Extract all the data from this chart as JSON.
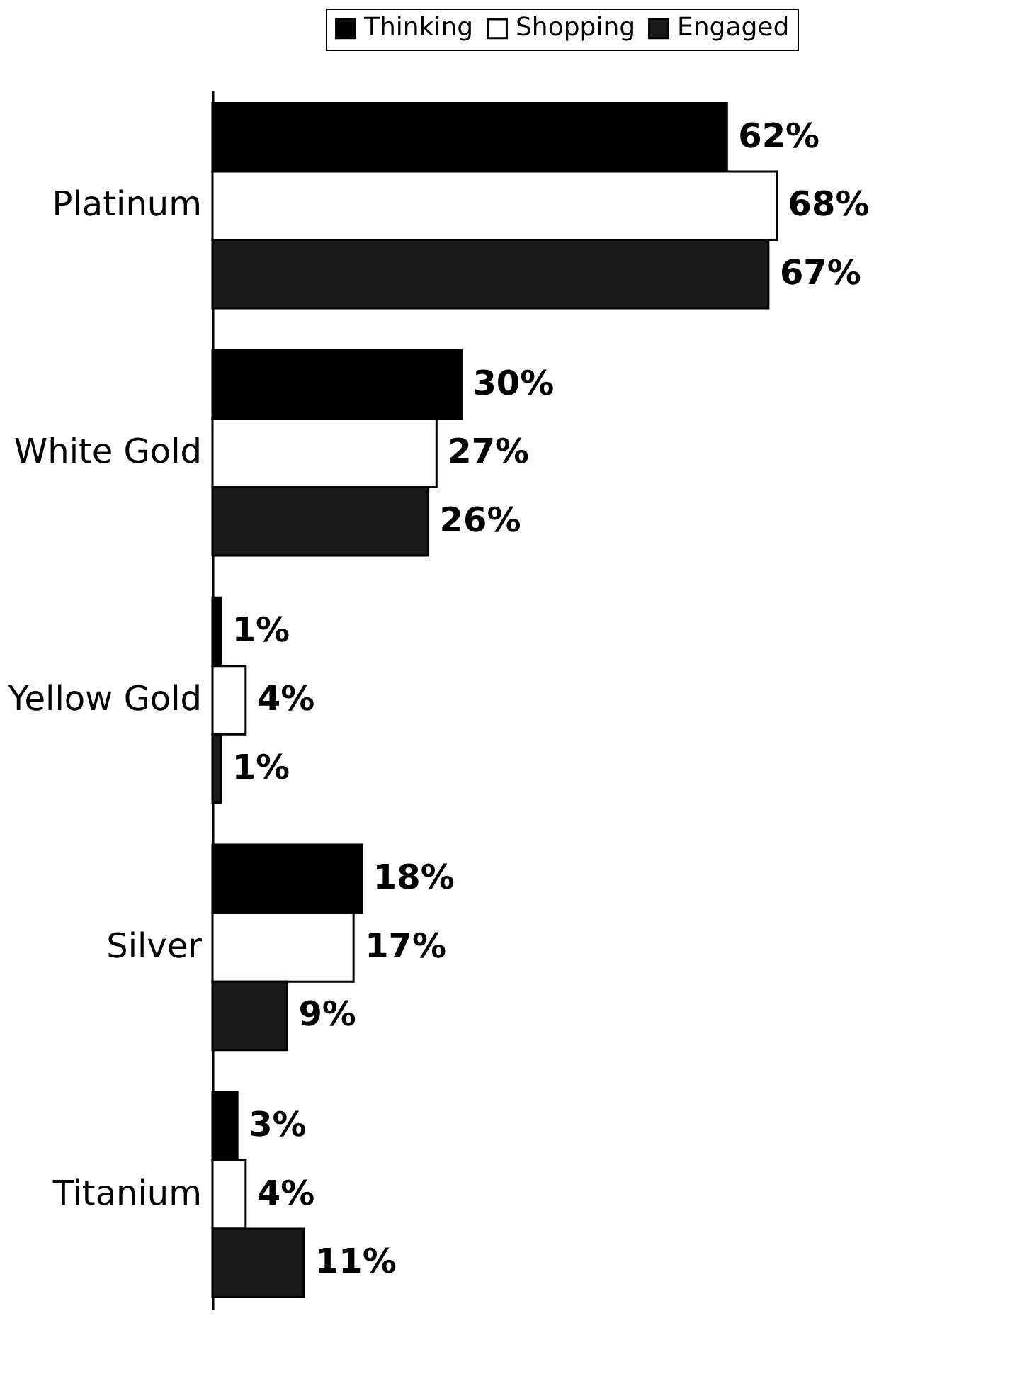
{
  "chart_data": {
    "type": "bar",
    "orientation": "horizontal",
    "data_labels": true,
    "legend": "top right",
    "categories": [
      "Platinum",
      "White Gold",
      "Yellow Gold",
      "Silver",
      "Titanium"
    ],
    "series": [
      {
        "name": "Thinking",
        "color": "#000000",
        "values": [
          62,
          30,
          1,
          18,
          3
        ],
        "value_labels": [
          "62%",
          "30%",
          "1%",
          "18%",
          "3%"
        ]
      },
      {
        "name": "Shopping",
        "color": "#ffffff",
        "values": [
          68,
          27,
          4,
          17,
          4
        ],
        "value_labels": [
          "68%",
          "27%",
          "4%",
          "17%",
          "4%"
        ]
      },
      {
        "name": "Engaged",
        "color": "#1a1a1a",
        "values": [
          67,
          26,
          1,
          9,
          11
        ],
        "value_labels": [
          "67%",
          "26%",
          "1%",
          "9%",
          "11%"
        ]
      }
    ]
  }
}
